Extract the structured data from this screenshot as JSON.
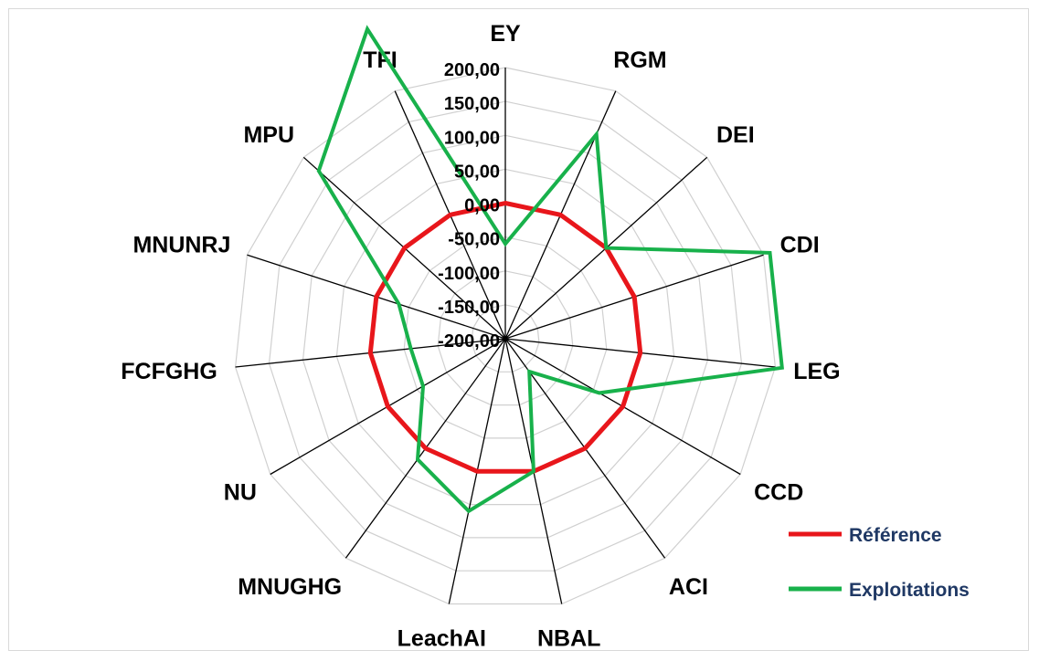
{
  "chart_data": {
    "type": "radar",
    "axes": [
      "EY",
      "RGM",
      "DEI",
      "CDI",
      "LEG",
      "CCD",
      "ACI",
      "NBAL",
      "LeachAI",
      "MNUGHG",
      "NU",
      "FCFGHG",
      "MNUNRJ",
      "MPU",
      "TFI"
    ],
    "ticks": [
      "200,00",
      "150,00",
      "100,00",
      "50,00",
      "0,00",
      "-50,00",
      "-100,00",
      "-150,00",
      "-200,00"
    ],
    "rlim": [
      -200,
      200
    ],
    "grid": true,
    "legend_position": "bottom-right",
    "series": [
      {
        "name": "Référence",
        "color": "#e8161b",
        "values": [
          0,
          0,
          0,
          0,
          0,
          0,
          0,
          0,
          0,
          0,
          0,
          0,
          0,
          0,
          0
        ]
      },
      {
        "name": "Exploitations",
        "color": "#18b14b",
        "values": [
          -60,
          130,
          0,
          210,
          210,
          -40,
          -140,
          0,
          60,
          20,
          -60,
          -60,
          -35,
          170,
          300
        ]
      }
    ]
  }
}
